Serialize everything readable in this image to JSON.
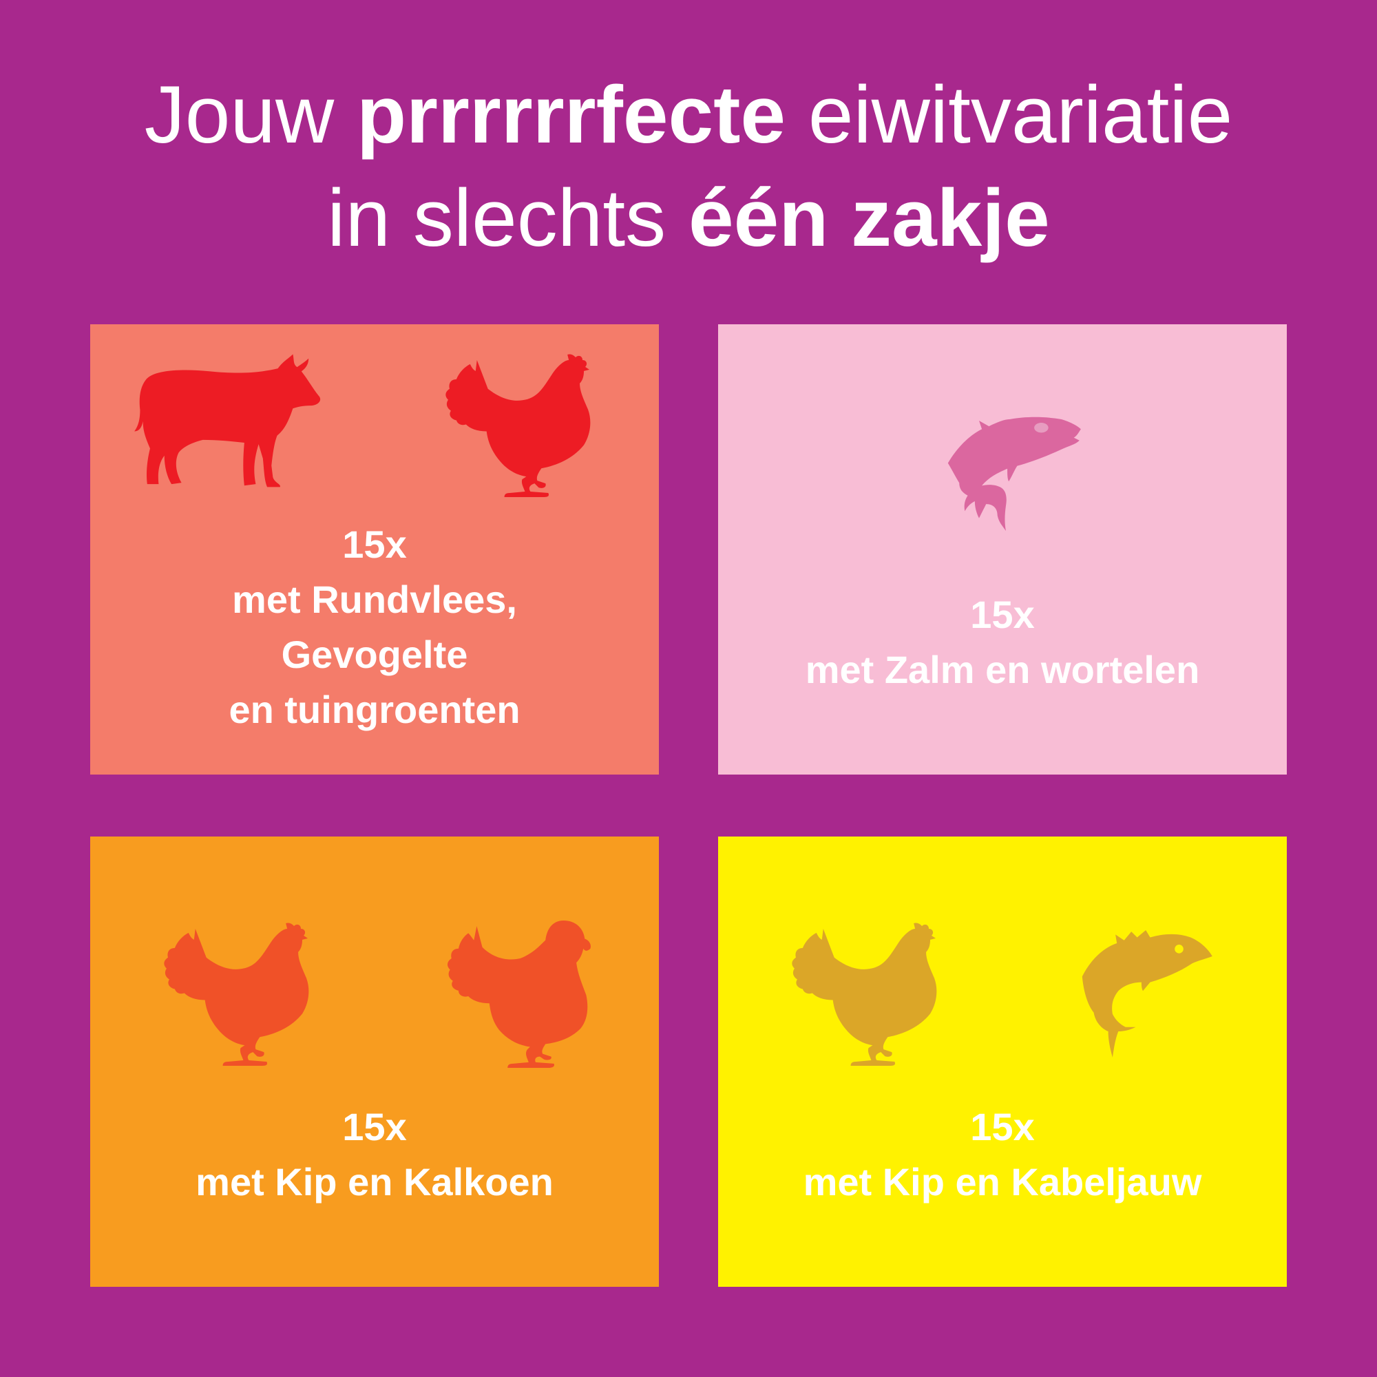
{
  "colors": {
    "background": "#a8288d",
    "text": "#ffffff"
  },
  "headline": {
    "line1_a": "Jouw ",
    "line1_bold": "prrrrrrfecte",
    "line1_b": " eiwitvariatie",
    "line2_a": "in slechts ",
    "line2_bold": "één zakje"
  },
  "cards": [
    {
      "bg": "#f47c6a",
      "icon_color": "#ed1c24",
      "icons": [
        "cow-icon",
        "chicken-icon"
      ],
      "lines": [
        "15x",
        "met Rundvlees,",
        "Gevogelte",
        "en tuingroenten"
      ]
    },
    {
      "bg": "#f8bdd5",
      "icon_color": "#db679f",
      "icons": [
        "salmon-icon"
      ],
      "lines": [
        "15x",
        "met Zalm en wortelen"
      ]
    },
    {
      "bg": "#f89c1f",
      "icon_color": "#f05128",
      "icons": [
        "chicken-icon",
        "turkey-icon"
      ],
      "lines": [
        "15x",
        "met Kip en Kalkoen"
      ]
    },
    {
      "bg": "#fff200",
      "icon_color": "#dba628",
      "icons": [
        "chicken-icon",
        "cod-icon"
      ],
      "lines": [
        "15x",
        "met Kip en Kabeljauw"
      ]
    }
  ]
}
